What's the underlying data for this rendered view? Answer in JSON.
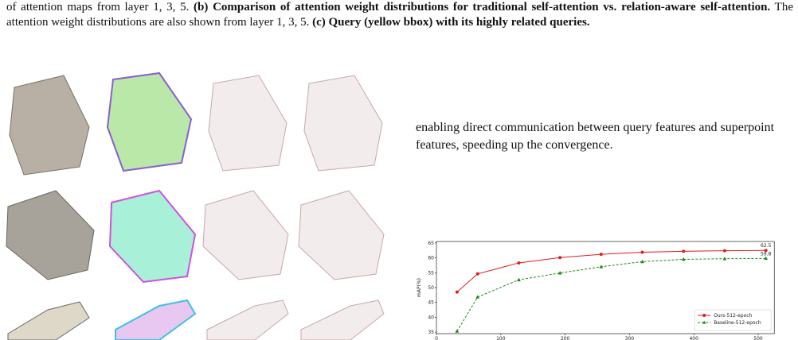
{
  "caption": [
    {
      "text": "of attention maps from layer 1, 3, 5. ",
      "bold": false
    },
    {
      "text": "(b) Comparison of attention weight distributions for traditional self-attention vs. relation-aware self-attention.",
      "bold": true
    },
    {
      "text": " The attention weight distributions are also shown from layer 1, 3, 5. ",
      "bold": false
    },
    {
      "text": "(c) Query (yellow bbox) with its highly related queries.",
      "bold": true
    }
  ],
  "paragraph": "enabling direct communication between query features and superpoint features, speeding up the convergence.",
  "chart_data": {
    "type": "line",
    "y_label": "mAP(%)",
    "x": [
      32,
      64,
      128,
      192,
      256,
      320,
      384,
      448,
      512
    ],
    "series": [
      {
        "name": "Ours-512-epoch",
        "color": "#e41a1c",
        "marker": "circle",
        "dash": false,
        "values": [
          48.5,
          54.6,
          58.3,
          60.1,
          61.2,
          61.9,
          62.2,
          62.4,
          62.5
        ],
        "value_labels": [
          null,
          null,
          null,
          null,
          null,
          null,
          null,
          null,
          "62.5"
        ]
      },
      {
        "name": "Baseline-512-epoch",
        "color": "#1a8a1a",
        "marker": "triangle",
        "dash": true,
        "values": [
          35.3,
          46.8,
          52.6,
          54.9,
          57.0,
          58.7,
          59.5,
          59.7,
          59.8
        ],
        "value_labels": [
          null,
          null,
          null,
          null,
          null,
          null,
          null,
          null,
          "59.8"
        ]
      }
    ],
    "xlim": [
      0,
      525
    ],
    "xticks": [
      0,
      100,
      200,
      300,
      400,
      500
    ],
    "ylim": [
      34.5,
      65.5
    ],
    "yticks": [
      35,
      40,
      45,
      50,
      55,
      60,
      65
    ],
    "legend": "lower right"
  }
}
